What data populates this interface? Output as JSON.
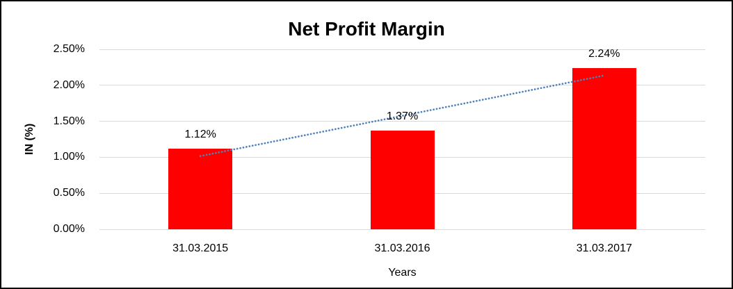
{
  "chart_data": {
    "type": "bar",
    "title": "Net Profit Margin",
    "categories": [
      "31.03.2015",
      "31.03.2016",
      "31.03.2017"
    ],
    "values": [
      1.12,
      1.37,
      2.24
    ],
    "value_labels": [
      "1.12%",
      "1.37%",
      "2.24%"
    ],
    "xlabel": "Years",
    "ylabel": "IN (%)",
    "ylim": [
      0,
      2.5
    ],
    "ytick_step": 0.5,
    "ytick_labels": [
      "0.00%",
      "0.50%",
      "1.00%",
      "1.50%",
      "2.00%",
      "2.50%"
    ],
    "grid": true,
    "legend": "none",
    "colors": {
      "bar": "#FF0000",
      "gridline": "#D9D9D9",
      "trendline": "#4F81BD",
      "text": "#000000",
      "frame_border": "#000000",
      "background": "#FFFFFF"
    },
    "trendline": {
      "kind": "linear",
      "style": "dotted",
      "spans": "first to last category center"
    }
  }
}
